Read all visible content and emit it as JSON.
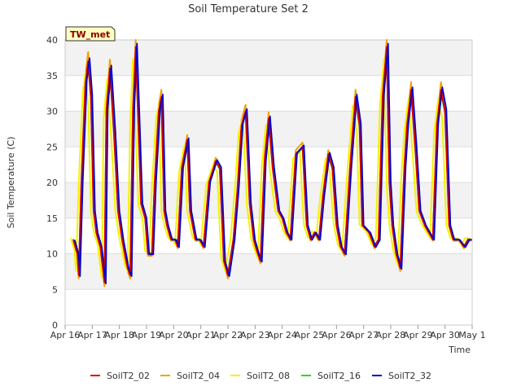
{
  "chart_data": {
    "type": "line",
    "title": "Soil Temperature Set 2",
    "xlabel": "Time",
    "ylabel": "Soil Temperature (C)",
    "badge": "TW_met",
    "x_ticks": [
      "Apr 16",
      "Apr 17",
      "Apr 18",
      "Apr 19",
      "Apr 20",
      "Apr 21",
      "Apr 22",
      "Apr 23",
      "Apr 24",
      "Apr 25",
      "Apr 26",
      "Apr 27",
      "Apr 28",
      "Apr 29",
      "Apr 30",
      "May 1"
    ],
    "y_ticks": [
      0,
      5,
      10,
      15,
      20,
      25,
      30,
      35,
      40
    ],
    "xlim": [
      0,
      15
    ],
    "ylim": [
      0,
      40
    ],
    "grid": true,
    "legend_position": "bottom",
    "series": [
      {
        "name": "SoilT2_02",
        "color": "#dd0000",
        "offset": 0.0,
        "scale": 1.0,
        "x": [
          0.3,
          0.45,
          0.5,
          0.6,
          0.75,
          0.85,
          0.95,
          1.05,
          1.15,
          1.3,
          1.45,
          1.52,
          1.65,
          1.8,
          1.95,
          2.1,
          2.3,
          2.4,
          2.5,
          2.6,
          2.8,
          2.95,
          3.05,
          3.2,
          3.3,
          3.45,
          3.55,
          3.65,
          3.75,
          3.9,
          4.05,
          4.15,
          4.3,
          4.5,
          4.6,
          4.8,
          4.95,
          5.1,
          5.3,
          5.55,
          5.7,
          5.85,
          6.0,
          6.2,
          6.35,
          6.5,
          6.65,
          6.8,
          6.95,
          7.1,
          7.2,
          7.35,
          7.5,
          7.65,
          7.85,
          8.0,
          8.15,
          8.3,
          8.5,
          8.75,
          8.9,
          9.05,
          9.2,
          9.35,
          9.5,
          9.7,
          9.85,
          10.0,
          10.15,
          10.3,
          10.5,
          10.7,
          10.85,
          10.95,
          11.2,
          11.4,
          11.55,
          11.7,
          11.85,
          11.95,
          12.05,
          12.2,
          12.35,
          12.5,
          12.6,
          12.75,
          12.9,
          13.05,
          13.25,
          13.4,
          13.55,
          13.7,
          13.85,
          14.0,
          14.15,
          14.3,
          14.5,
          14.7,
          14.85,
          14.95
        ],
        "y": [
          12,
          10,
          7,
          20,
          34,
          37,
          32,
          16,
          13,
          11,
          6,
          30,
          36,
          27,
          16,
          12,
          8,
          7,
          30,
          39,
          17,
          15,
          10,
          10,
          20,
          30,
          32,
          16,
          14,
          12,
          12,
          11,
          22,
          26,
          16,
          12,
          12,
          11,
          20,
          23,
          22,
          9,
          7,
          12,
          19,
          28,
          30,
          17,
          12,
          10,
          9,
          23,
          29,
          22,
          16,
          15,
          13,
          12,
          24,
          25,
          14,
          12,
          13,
          12,
          18,
          24,
          22,
          14,
          11,
          10,
          22,
          32,
          28,
          14,
          13,
          11,
          12,
          32,
          39,
          20,
          14,
          10,
          8,
          22,
          28,
          33,
          25,
          16,
          14,
          13,
          12,
          28,
          33,
          30,
          14,
          12,
          12,
          11,
          12,
          12
        ]
      },
      {
        "name": "SoilT2_04",
        "color": "#f5a000",
        "offset": 0.0,
        "scale": 1.06
      },
      {
        "name": "SoilT2_08",
        "color": "#f2f200",
        "offset": -0.1,
        "scale": 0.93
      },
      {
        "name": "SoilT2_16",
        "color": "#22dd22",
        "offset": 0.0,
        "scale": 0.98
      },
      {
        "name": "SoilT2_32",
        "color": "#0000cc",
        "offset": 0.05,
        "scale": 1.02
      }
    ]
  }
}
